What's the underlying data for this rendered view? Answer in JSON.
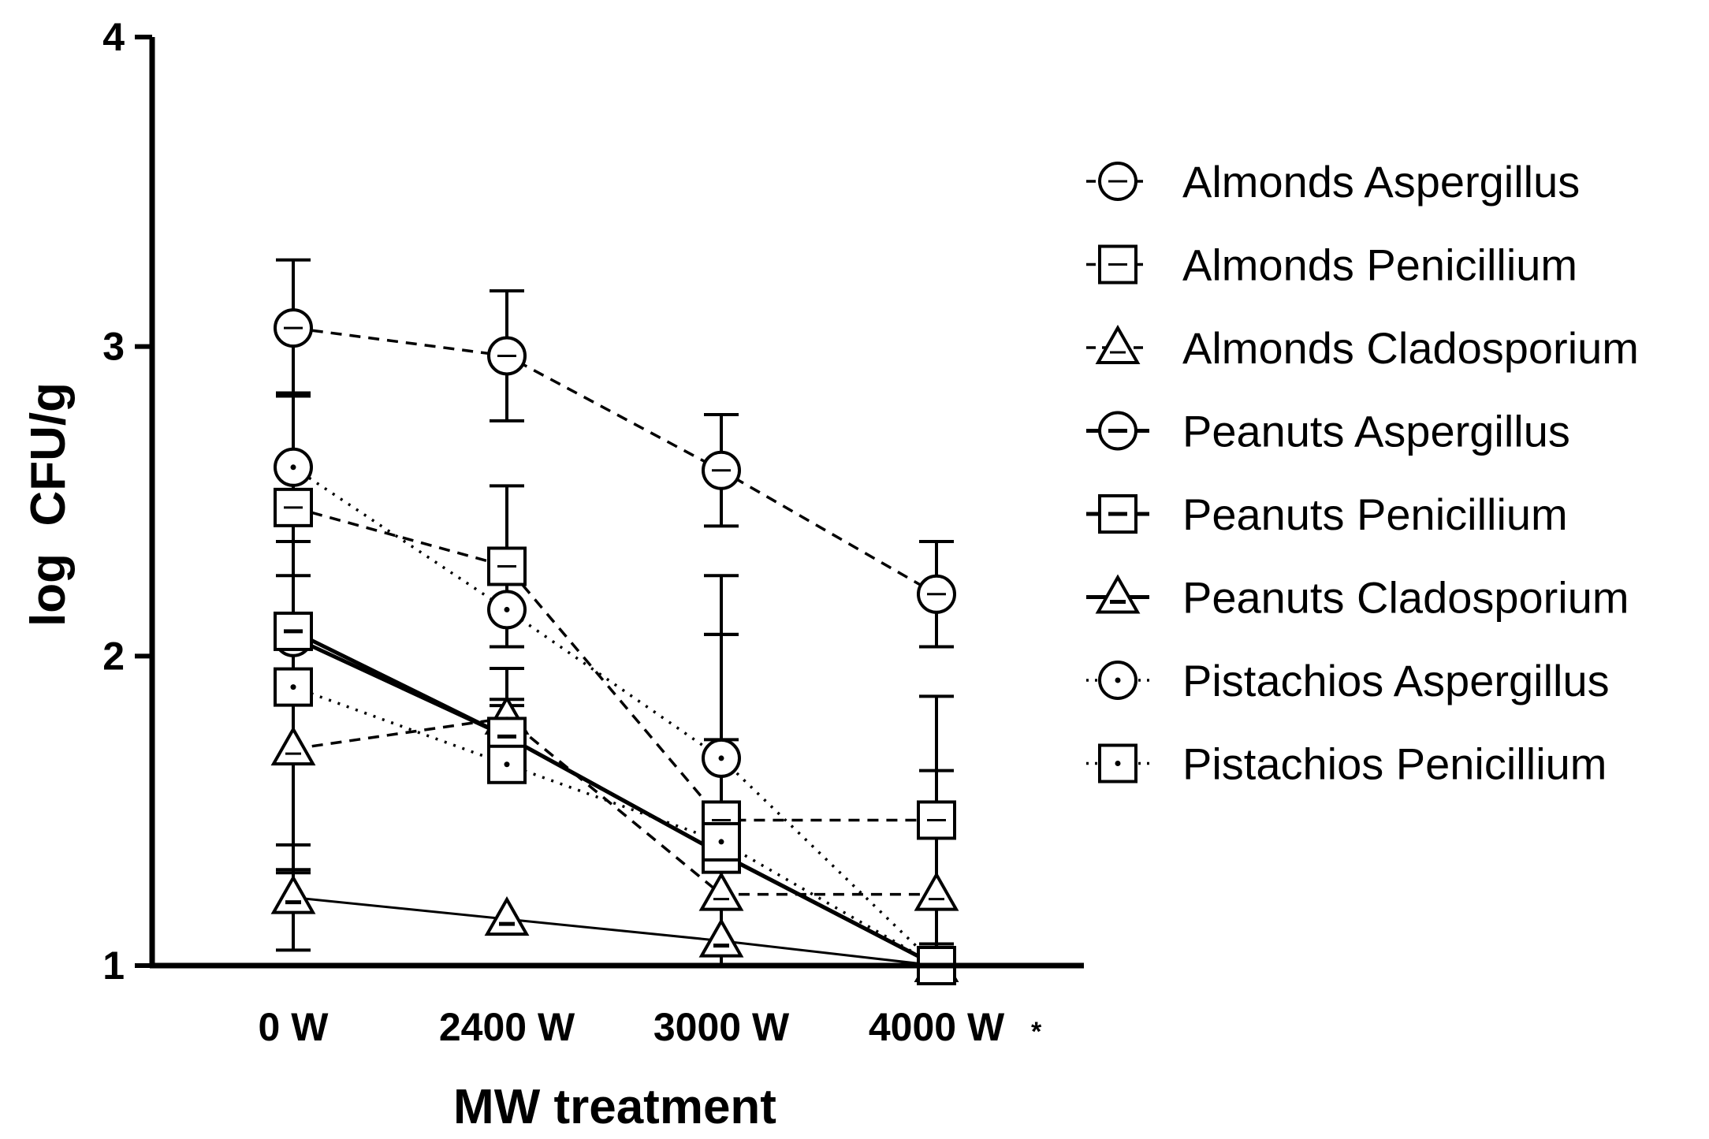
{
  "colors": {
    "ink": "#000000",
    "background": "#ffffff"
  },
  "chart_data": {
    "type": "line",
    "title": "",
    "xlabel": "MW treatment",
    "ylabel": "log  CFU/g",
    "categories": [
      "0 W",
      "2400 W",
      "3000 W",
      "4000 W"
    ],
    "annotation": "*",
    "ylim": [
      1,
      4
    ],
    "yticks": [
      "1",
      "2",
      "3",
      "4"
    ],
    "legend_position": "right",
    "series": [
      {
        "name": "Almonds Aspergillus",
        "marker": "circle",
        "line": "dashed",
        "values": [
          3.06,
          2.97,
          2.6,
          2.2
        ],
        "errors": [
          0.22,
          0.21,
          0.18,
          0.17
        ]
      },
      {
        "name": "Almonds Penicillium",
        "marker": "square",
        "line": "dashed",
        "values": [
          2.48,
          2.29,
          1.47,
          1.47
        ],
        "errors": [
          0.37,
          0.26,
          0.6,
          0.4
        ]
      },
      {
        "name": "Almonds Cladosporium",
        "marker": "triangle",
        "line": "dashed",
        "values": [
          1.7,
          1.8,
          1.23,
          1.23
        ],
        "errors": [
          0.4,
          0.16,
          0.5,
          0.4
        ]
      },
      {
        "name": "Peanuts Aspergillus",
        "marker": "circle",
        "line": "solid",
        "values": [
          2.06,
          1.74,
          1.36,
          1.0
        ],
        "errors": [
          0.2,
          0.12,
          0.71,
          0.0
        ]
      },
      {
        "name": "Peanuts Penicillium",
        "marker": "square",
        "line": "solid",
        "values": [
          2.08,
          1.74,
          1.36,
          1.0
        ],
        "errors": [
          0.77,
          0.1,
          0.9,
          0.0
        ]
      },
      {
        "name": "Peanuts Cladosporium",
        "marker": "triangle",
        "line": "solid",
        "values": [
          1.22,
          1.15,
          1.08,
          1.0
        ],
        "errors": [
          0.17,
          0.0,
          0.0,
          0.0
        ]
      },
      {
        "name": "Pistachios Aspergillus",
        "marker": "circle",
        "line": "dotted",
        "values": [
          2.61,
          2.15,
          1.67,
          1.0
        ],
        "errors": [
          0.24,
          0.0,
          0.0,
          0.0
        ]
      },
      {
        "name": "Pistachios Penicillium",
        "marker": "square",
        "line": "dotted",
        "values": [
          1.9,
          1.65,
          1.4,
          1.0
        ],
        "errors": [
          0.0,
          0.0,
          0.0,
          0.0
        ]
      }
    ]
  }
}
